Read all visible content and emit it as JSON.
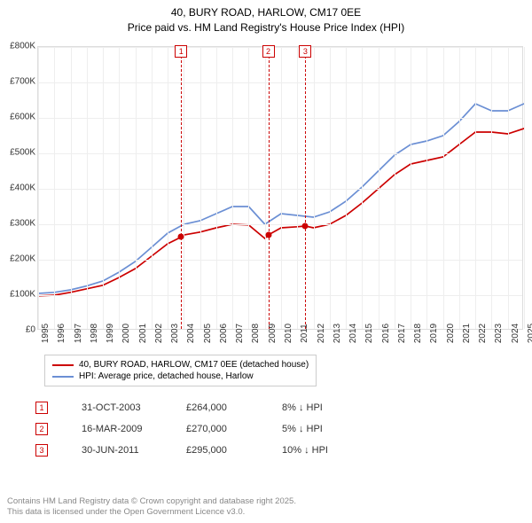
{
  "title_line1": "40, BURY ROAD, HARLOW, CM17 0EE",
  "title_line2": "Price paid vs. HM Land Registry's House Price Index (HPI)",
  "chart": {
    "type": "line",
    "background_color": "#ffffff",
    "grid_color": "#eeeeee",
    "plot_border_color": "#dddddd",
    "y_axis": {
      "min": 0,
      "max": 800000,
      "step": 100000,
      "labels": [
        "£0",
        "£100K",
        "£200K",
        "£300K",
        "£400K",
        "£500K",
        "£600K",
        "£700K",
        "£800K"
      ],
      "label_fontsize": 10
    },
    "x_axis": {
      "min": 1995,
      "max": 2025,
      "step": 1,
      "labels": [
        "1995",
        "1996",
        "1997",
        "1998",
        "1999",
        "2000",
        "2001",
        "2002",
        "2003",
        "2004",
        "2005",
        "2006",
        "2007",
        "2008",
        "2009",
        "2010",
        "2011",
        "2012",
        "2013",
        "2014",
        "2015",
        "2016",
        "2017",
        "2018",
        "2019",
        "2020",
        "2021",
        "2022",
        "2023",
        "2024",
        "2025"
      ],
      "label_fontsize": 10
    },
    "series": [
      {
        "name": "40, BURY ROAD, HARLOW, CM17 0EE (detached house)",
        "color": "#cc0000",
        "line_width": 1.7,
        "x": [
          1995,
          1996,
          1997,
          1998,
          1999,
          2000,
          2001,
          2002,
          2003,
          2003.83,
          2004,
          2005,
          2006,
          2007,
          2008,
          2009,
          2009.21,
          2010,
          2011,
          2011.5,
          2012,
          2013,
          2014,
          2015,
          2016,
          2017,
          2018,
          2019,
          2020,
          2021,
          2022,
          2023,
          2024,
          2025,
          2025.6
        ],
        "y": [
          98000,
          100000,
          108000,
          118000,
          128000,
          150000,
          175000,
          210000,
          245000,
          264000,
          270000,
          278000,
          290000,
          300000,
          298000,
          260000,
          270000,
          290000,
          293000,
          295000,
          290000,
          300000,
          325000,
          360000,
          400000,
          440000,
          470000,
          480000,
          490000,
          525000,
          560000,
          560000,
          555000,
          570000,
          575000
        ]
      },
      {
        "name": "HPI: Average price, detached house, Harlow",
        "color": "#6b8fd4",
        "line_width": 1.7,
        "x": [
          1995,
          1996,
          1997,
          1998,
          1999,
          2000,
          2001,
          2002,
          2003,
          2004,
          2005,
          2006,
          2007,
          2008,
          2009,
          2010,
          2011,
          2012,
          2013,
          2014,
          2015,
          2016,
          2017,
          2018,
          2019,
          2020,
          2021,
          2022,
          2023,
          2024,
          2025,
          2025.6
        ],
        "y": [
          105000,
          108000,
          115000,
          126000,
          140000,
          165000,
          195000,
          235000,
          275000,
          300000,
          310000,
          330000,
          350000,
          350000,
          300000,
          330000,
          325000,
          320000,
          335000,
          365000,
          405000,
          450000,
          495000,
          525000,
          535000,
          550000,
          590000,
          640000,
          620000,
          620000,
          640000,
          630000
        ]
      }
    ],
    "markers": [
      {
        "num": "1",
        "year": 2003.83,
        "color": "#cc0000"
      },
      {
        "num": "2",
        "year": 2009.21,
        "color": "#cc0000"
      },
      {
        "num": "3",
        "year": 2011.5,
        "color": "#cc0000"
      }
    ],
    "sale_points": [
      {
        "year": 2003.83,
        "price": 264000,
        "color": "#cc0000"
      },
      {
        "year": 2009.21,
        "price": 270000,
        "color": "#cc0000"
      },
      {
        "year": 2011.5,
        "price": 295000,
        "color": "#cc0000"
      }
    ]
  },
  "legend": {
    "items": [
      {
        "color": "#cc0000",
        "label": "40, BURY ROAD, HARLOW, CM17 0EE (detached house)"
      },
      {
        "color": "#6b8fd4",
        "label": "HPI: Average price, detached house, Harlow"
      }
    ]
  },
  "sales": [
    {
      "num": "1",
      "color": "#cc0000",
      "date": "31-OCT-2003",
      "price": "£264,000",
      "vs_hpi": "8% ↓ HPI"
    },
    {
      "num": "2",
      "color": "#cc0000",
      "date": "16-MAR-2009",
      "price": "£270,000",
      "vs_hpi": "5% ↓ HPI"
    },
    {
      "num": "3",
      "color": "#cc0000",
      "date": "30-JUN-2011",
      "price": "£295,000",
      "vs_hpi": "10% ↓ HPI"
    }
  ],
  "attribution": {
    "line1": "Contains HM Land Registry data © Crown copyright and database right 2025.",
    "line2": "This data is licensed under the Open Government Licence v3.0.",
    "color": "#888888"
  }
}
